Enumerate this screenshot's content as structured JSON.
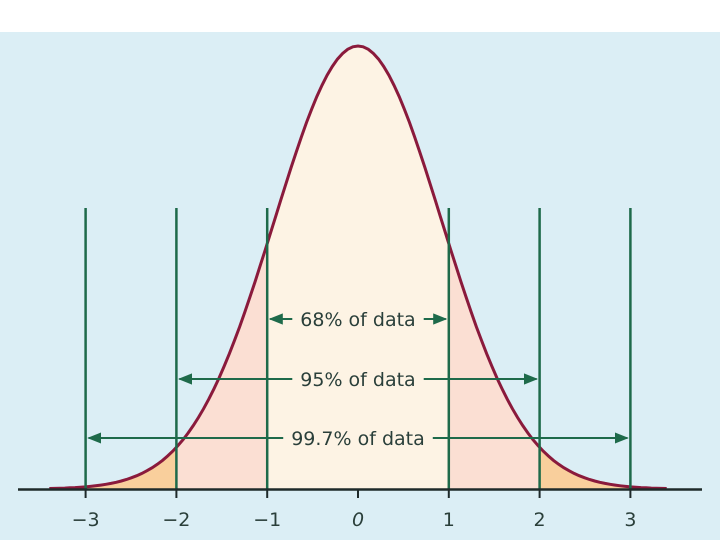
{
  "colors": {
    "panel_background": "#dbeef5",
    "curve_stroke": "#8a1a3c",
    "center_band_fill": "#fdf3e4",
    "middle_band_fill": "#fbdfd3",
    "outer_band_fill": "#f9cf9c",
    "boundary_line": "#1e6a4a",
    "axis_line": "#1e2a2a",
    "label_text": "#2a3f3a"
  },
  "diagram": {
    "annotations": [
      {
        "label": "68% of data",
        "from": -1,
        "to": 1
      },
      {
        "label": "95% of data",
        "from": -2,
        "to": 2
      },
      {
        "label": "99.7% of data",
        "from": -3,
        "to": 3
      }
    ],
    "tick_labels": [
      "−3",
      "−2",
      "−1",
      "0",
      "1",
      "2",
      "3"
    ],
    "boundaries": [
      -3,
      -2,
      -1,
      1,
      2,
      3
    ]
  }
}
